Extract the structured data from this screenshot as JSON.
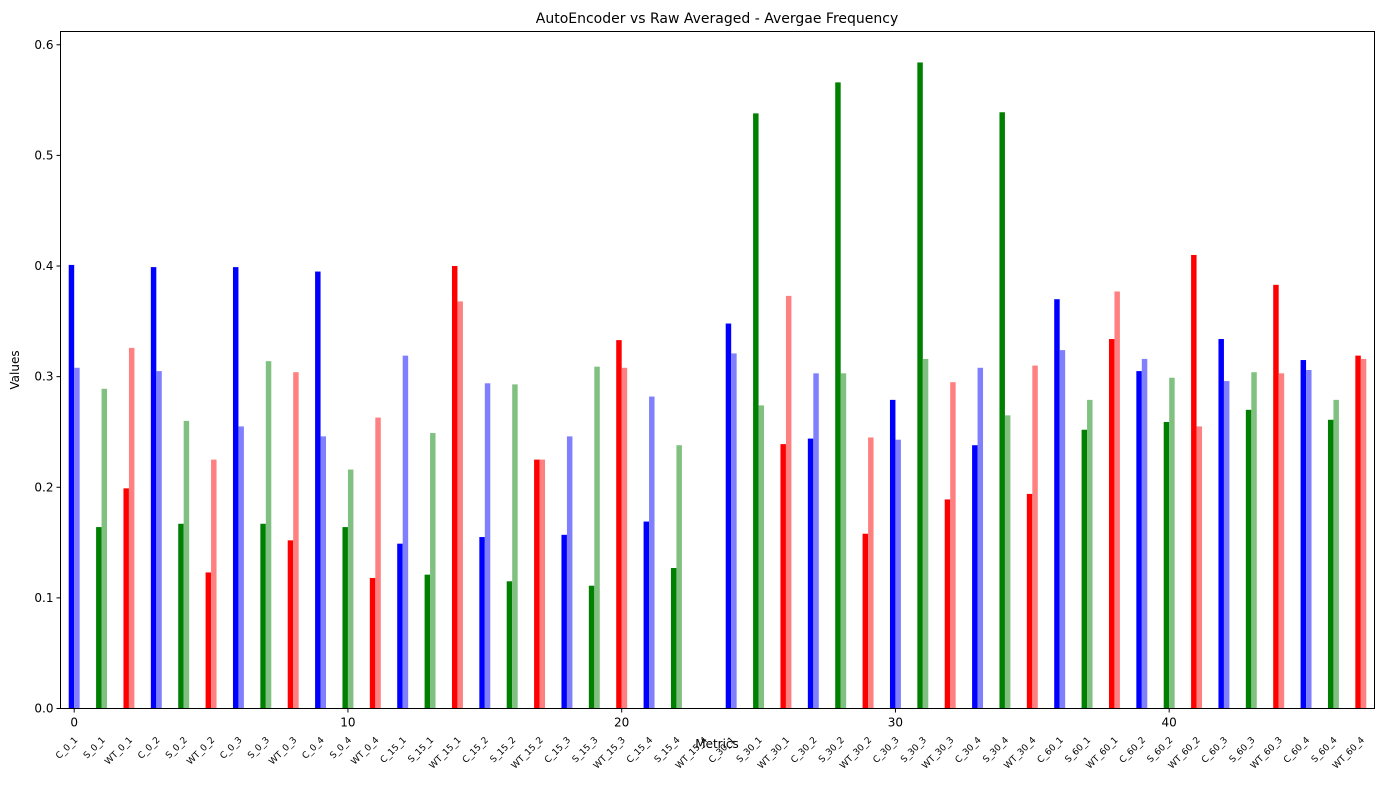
{
  "chart_data": {
    "type": "bar",
    "title": "AutoEncoder vs Raw Averaged - Avergae Frequency",
    "xlabel": "Metrics",
    "ylabel": "Values",
    "xlim": [
      -0.5,
      47.5
    ],
    "ylim": [
      0,
      0.612
    ],
    "x_ticks": [
      0,
      10,
      20,
      30,
      40
    ],
    "y_ticks": [
      0.0,
      0.1,
      0.2,
      0.3,
      0.4,
      0.5,
      0.6
    ],
    "categories": [
      "C_0_1",
      "S_0_1",
      "WT_0_1",
      "C_0_2",
      "S_0_2",
      "WT_0_2",
      "C_0_3",
      "S_0_3",
      "WT_0_3",
      "C_0_4",
      "S_0_4",
      "WT_0_4",
      "C_15_1",
      "S_15_1",
      "WT_15_1",
      "C_15_2",
      "S_15_2",
      "WT_15_2",
      "C_15_3",
      "S_15_3",
      "WT_15_3",
      "C_15_4",
      "S_15_4",
      "WT_15_4",
      "C_30_1",
      "S_30_1",
      "WT_30_1",
      "C_30_2",
      "S_30_2",
      "WT_30_2",
      "C_30_3",
      "S_30_3",
      "WT_30_3",
      "C_30_4",
      "S_30_4",
      "WT_30_4",
      "C_60_1",
      "S_60_1",
      "WT_60_1",
      "C_60_2",
      "S_60_2",
      "WT_60_2",
      "C_60_3",
      "S_60_3",
      "WT_60_3",
      "C_60_4",
      "S_60_4",
      "WT_60_4"
    ],
    "series": [
      {
        "values": [
          0.401,
          0.164,
          0.199,
          0.399,
          0.167,
          0.123,
          0.399,
          0.167,
          0.152,
          0.395,
          0.164,
          0.118,
          0.149,
          0.121,
          0.4,
          0.155,
          0.115,
          0.225,
          0.157,
          0.111,
          0.333,
          0.169,
          0.127,
          0,
          0.348,
          0.538,
          0.239,
          0.244,
          0.566,
          0.158,
          0.279,
          0.584,
          0.189,
          0.238,
          0.539,
          0.194,
          0.37,
          0.252,
          0.334,
          0.305,
          0.259,
          0.41,
          0.334,
          0.27,
          0.383,
          0.315,
          0.261,
          0.319
        ],
        "colors": [
          "#0000ff",
          "#008000",
          "#ff0000",
          "#0000ff",
          "#008000",
          "#ff0000",
          "#0000ff",
          "#008000",
          "#ff0000",
          "#0000ff",
          "#008000",
          "#ff0000",
          "#0000ff",
          "#008000",
          "#ff0000",
          "#0000ff",
          "#008000",
          "#ff0000",
          "#0000ff",
          "#008000",
          "#ff0000",
          "#0000ff",
          "#008000",
          "#ff0000",
          "#0000ff",
          "#008000",
          "#ff0000",
          "#0000ff",
          "#008000",
          "#ff0000",
          "#0000ff",
          "#008000",
          "#ff0000",
          "#0000ff",
          "#008000",
          "#ff0000",
          "#0000ff",
          "#008000",
          "#ff0000",
          "#0000ff",
          "#008000",
          "#ff0000",
          "#0000ff",
          "#008000",
          "#ff0000",
          "#0000ff",
          "#008000",
          "#ff0000"
        ]
      },
      {
        "values": [
          0.308,
          0.289,
          0.326,
          0.305,
          0.26,
          0.225,
          0.255,
          0.314,
          0.304,
          0.246,
          0.216,
          0.263,
          0.319,
          0.249,
          0.368,
          0.294,
          0.293,
          0.225,
          0.246,
          0.309,
          0.308,
          0.282,
          0.238,
          0,
          0.321,
          0.274,
          0.373,
          0.303,
          0.303,
          0.245,
          0.243,
          0.316,
          0.295,
          0.308,
          0.265,
          0.31,
          0.324,
          0.279,
          0.377,
          0.316,
          0.299,
          0.255,
          0.296,
          0.304,
          0.303,
          0.306,
          0.279,
          0.316
        ],
        "colors": [
          "#8080ff",
          "#80c080",
          "#ff8080",
          "#8080ff",
          "#80c080",
          "#ff8080",
          "#8080ff",
          "#80c080",
          "#ff8080",
          "#8080ff",
          "#80c080",
          "#ff8080",
          "#8080ff",
          "#80c080",
          "#ff8080",
          "#8080ff",
          "#80c080",
          "#ff8080",
          "#8080ff",
          "#80c080",
          "#ff8080",
          "#8080ff",
          "#80c080",
          "#ff8080",
          "#8080ff",
          "#80c080",
          "#ff8080",
          "#8080ff",
          "#80c080",
          "#ff8080",
          "#8080ff",
          "#80c080",
          "#ff8080",
          "#8080ff",
          "#80c080",
          "#ff8080",
          "#8080ff",
          "#80c080",
          "#ff8080",
          "#8080ff",
          "#80c080",
          "#ff8080",
          "#8080ff",
          "#80c080",
          "#ff8080",
          "#8080ff",
          "#80c080",
          "#ff8080"
        ]
      }
    ],
    "grid": false,
    "legend": "none"
  }
}
